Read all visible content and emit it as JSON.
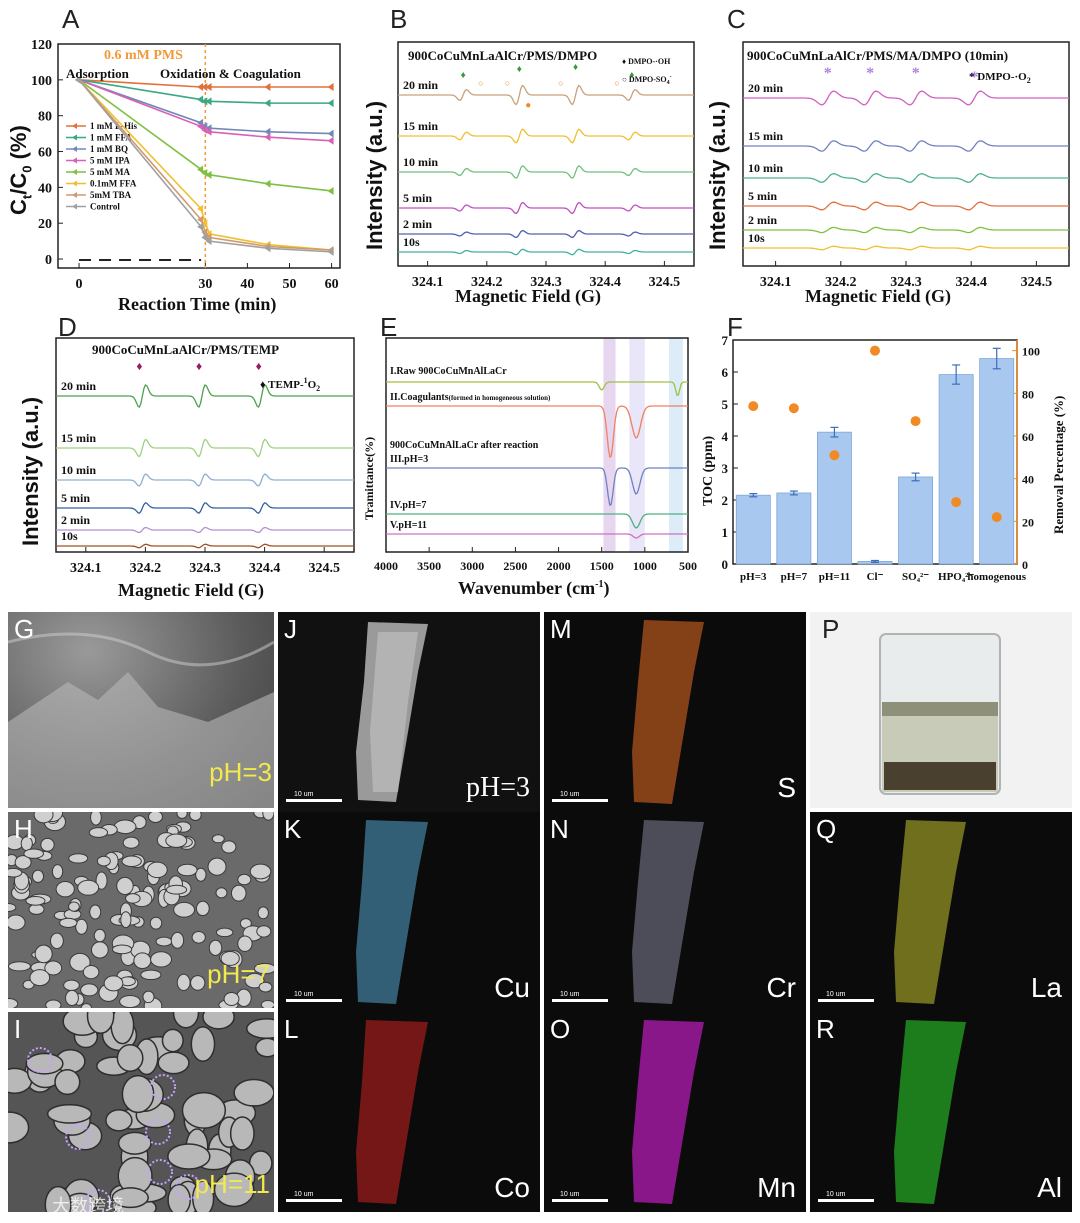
{
  "panels": {
    "A": {
      "letter": "A",
      "annotation": "0.6 mM PMS",
      "phase1": "Adsorption",
      "phase2": "Oxidation & Coagulation",
      "ylabel": "C",
      "ylabel_t": "t",
      "ylabel_mid": "/C",
      "ylabel_0": "0",
      "ylabel_end": " (%)",
      "xlabel": "Reaction Time (min)",
      "yticks": [
        "0",
        "20",
        "40",
        "60",
        "80",
        "100",
        "120"
      ],
      "xticks": [
        "0",
        "30",
        "40",
        "50",
        "60"
      ],
      "legend": [
        "1 mM L-His",
        "1 mM FFA",
        "1 mM BQ",
        "5 mM IPA",
        "5 mM MA",
        "0.1mM FFA",
        "5mM TBA",
        "Control"
      ]
    },
    "B": {
      "letter": "B",
      "title": "900CoCuMnLaAlCr/PMS/DMPO",
      "legend1": "DMPO-·OH",
      "legend2": "DMPO-SO",
      "legend2_sub": "4",
      "legend2_sup": "-",
      "times": [
        "20 min",
        "15 min",
        "10 min",
        "5 min",
        "2 min",
        "10s"
      ],
      "ylabel": "Intensity (a.u.)",
      "xlabel": "Magnetic Field (G)",
      "xticks": [
        "324.1",
        "324.2",
        "324.3",
        "324.4",
        "324.5"
      ]
    },
    "C": {
      "letter": "C",
      "title": "900CoCuMnLaAlCr/PMS/MA/DMPO (10min)",
      "legend": "DMPO-·O",
      "legend_sub": "2",
      "times": [
        "20 min",
        "15 min",
        "10 min",
        "5 min",
        "2 min",
        "10s"
      ],
      "ylabel": "Intensity (a.u.)",
      "xlabel": "Magnetic Field (G)",
      "xticks": [
        "324.1",
        "324.2",
        "324.3",
        "324.4",
        "324.5"
      ]
    },
    "D": {
      "letter": "D",
      "title": "900CoCuMnLaAlCr/PMS/TEMP",
      "legend": "TEMP-",
      "legend_sup": "1",
      "legend_o": "O",
      "legend_sub": "2",
      "times": [
        "20 min",
        "15 min",
        "10 min",
        "5 min",
        "2 min",
        "10s"
      ],
      "ylabel": "Intensity (a.u.)",
      "xlabel": "Magnetic Field (G)",
      "xticks": [
        "324.1",
        "324.2",
        "324.3",
        "324.4",
        "324.5"
      ]
    },
    "E": {
      "letter": "E",
      "lines": [
        "I.Raw 900CoCuMnAlLaCr",
        "II.Coagulants",
        "(formed in homogeneous solution)",
        "900CoCuMnAlLaCr after reaction",
        "III.pH=3",
        "IV.pH=7",
        "V.pH=11"
      ],
      "ylabel": "Tramittance(%)",
      "xlabel": "Wavenumber (cm",
      "xlabel_sup": "-1",
      "xlabel_end": ")",
      "xticks": [
        "4000",
        "3500",
        "3000",
        "2500",
        "2000",
        "1500",
        "1000",
        "500"
      ]
    },
    "F": {
      "letter": "F",
      "ylabel_left": "TOC (ppm)",
      "ylabel_right": "Removal Percentage (%)",
      "yticks_left": [
        "0",
        "1",
        "2",
        "3",
        "4",
        "5",
        "6",
        "7"
      ],
      "yticks_right": [
        "0",
        "20",
        "40",
        "60",
        "80",
        "100"
      ]
    },
    "G": {
      "letter": "G",
      "ph": "pH=3"
    },
    "H": {
      "letter": "H",
      "ph": "pH=7"
    },
    "I": {
      "letter": "I",
      "ph": "pH=11"
    },
    "J": {
      "letter": "J",
      "ph": "pH=3",
      "scale": "10 um"
    },
    "K": {
      "letter": "K",
      "elem": "Cu",
      "scale": "10 um"
    },
    "L": {
      "letter": "L",
      "elem": "Co",
      "scale": "10 um"
    },
    "M": {
      "letter": "M",
      "elem": "S",
      "scale": "10 um"
    },
    "N": {
      "letter": "N",
      "elem": "Cr",
      "scale": "10 um"
    },
    "O": {
      "letter": "O",
      "elem": "Mn",
      "scale": "10 um"
    },
    "P": {
      "letter": "P"
    },
    "Q": {
      "letter": "Q",
      "elem": "La",
      "scale": "10 um"
    },
    "R": {
      "letter": "R",
      "elem": "Al",
      "scale": "10 um"
    }
  },
  "watermark": "大数跨境",
  "chart_data": [
    {
      "type": "line",
      "panel": "A",
      "xlabel": "Reaction Time (min)",
      "ylabel": "Ct/C0 (%)",
      "xlim": [
        -5,
        62
      ],
      "ylim": [
        -5,
        120
      ],
      "x": [
        0,
        29,
        30,
        31,
        45,
        60
      ],
      "series": [
        {
          "name": "1 mM L-His",
          "color": "#e2703a",
          "values": [
            100,
            96,
            96,
            96,
            96,
            96
          ]
        },
        {
          "name": "1 mM FFA",
          "color": "#3aa883",
          "values": [
            100,
            89,
            88,
            88,
            87,
            87
          ]
        },
        {
          "name": "1 mM BQ",
          "color": "#7088b8",
          "values": [
            100,
            76,
            74,
            73,
            71,
            70
          ]
        },
        {
          "name": "5 mM IPA",
          "color": "#d861b5",
          "values": [
            100,
            74,
            72,
            71,
            68,
            66
          ]
        },
        {
          "name": "5 mM MA",
          "color": "#80c040",
          "values": [
            100,
            50,
            48,
            47,
            42,
            38
          ]
        },
        {
          "name": "0.1mM FFA",
          "color": "#f0c030",
          "values": [
            100,
            28,
            20,
            14,
            8,
            5
          ]
        },
        {
          "name": "5mM TBA",
          "color": "#d09a70",
          "values": [
            100,
            22,
            15,
            12,
            7,
            5
          ]
        },
        {
          "name": "Control",
          "color": "#a0a0a0",
          "values": [
            100,
            18,
            12,
            10,
            6,
            4
          ]
        }
      ]
    },
    {
      "type": "bar",
      "panel": "F",
      "categories": [
        "pH=3",
        "pH=7",
        "pH=11",
        "Cl⁻",
        "SO₄²⁻",
        "HPO₄²⁻",
        "homogenous"
      ],
      "ylabel": "TOC (ppm)",
      "ylabel_right": "Removal Percentage (%)",
      "ylim": [
        0,
        7
      ],
      "ylim_right": [
        0,
        105
      ],
      "series": [
        {
          "name": "TOC (ppm)",
          "color": "#a9c8f0",
          "values": [
            2.15,
            2.22,
            4.12,
            0.08,
            2.72,
            5.92,
            6.42
          ],
          "errors": [
            0.05,
            0.06,
            0.15,
            0.03,
            0.12,
            0.3,
            0.32
          ]
        },
        {
          "name": "Removal Percentage (%)",
          "color": "#f08a24",
          "values": [
            74,
            73,
            51,
            100,
            67,
            29,
            22
          ]
        }
      ]
    }
  ]
}
